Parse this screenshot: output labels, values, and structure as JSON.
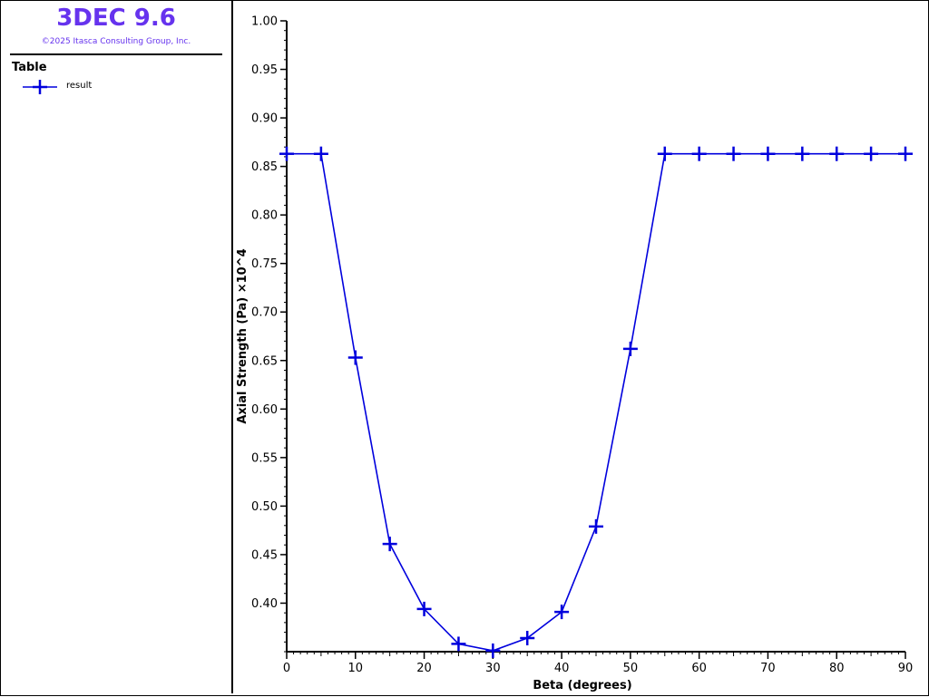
{
  "app": {
    "title": "3DEC 9.6",
    "copyright": "©2025 Itasca Consulting Group, Inc."
  },
  "legend": {
    "heading": "Table",
    "items": [
      {
        "label": "result",
        "color": "#0000dd",
        "marker": "plus-icon"
      }
    ]
  },
  "chart_data": {
    "type": "line",
    "xlabel": "Beta (degrees)",
    "ylabel": "Axial Strength (Pa)  ×10^4",
    "xlim": [
      0,
      90
    ],
    "ylim": [
      0.35,
      1.0
    ],
    "x_ticks": [
      0,
      10,
      20,
      30,
      40,
      50,
      60,
      70,
      80,
      90
    ],
    "x_tick_labels": [
      "0",
      "10",
      "20",
      "30",
      "40",
      "50",
      "60",
      "70",
      "80",
      "90"
    ],
    "y_ticks": [
      0.4,
      0.45,
      0.5,
      0.55,
      0.6,
      0.65,
      0.7,
      0.75,
      0.8,
      0.85,
      0.9,
      0.95,
      1.0
    ],
    "y_tick_labels": [
      "0.40",
      "0.45",
      "0.50",
      "0.55",
      "0.60",
      "0.65",
      "0.70",
      "0.75",
      "0.80",
      "0.85",
      "0.90",
      "0.95",
      "1.00"
    ],
    "grid": false,
    "series": [
      {
        "name": "result",
        "color": "#0000dd",
        "x": [
          0,
          5,
          10,
          15,
          20,
          25,
          30,
          35,
          40,
          45,
          50,
          55,
          60,
          65,
          70,
          75,
          80,
          85,
          90
        ],
        "y": [
          0.863,
          0.863,
          0.653,
          0.461,
          0.394,
          0.358,
          0.351,
          0.364,
          0.391,
          0.479,
          0.662,
          0.863,
          0.863,
          0.863,
          0.863,
          0.863,
          0.863,
          0.863,
          0.863
        ]
      }
    ]
  }
}
